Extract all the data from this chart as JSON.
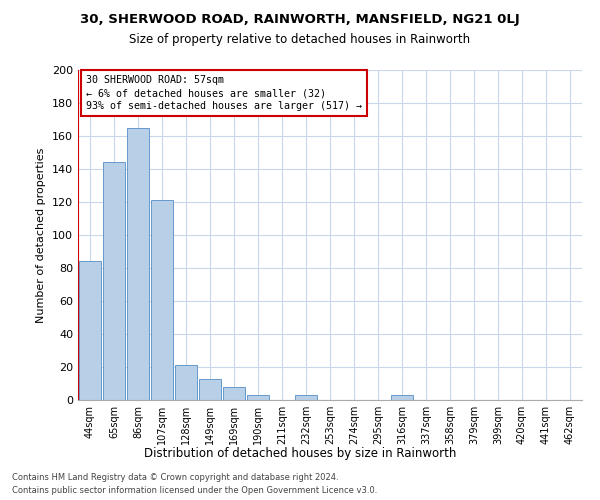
{
  "title1": "30, SHERWOOD ROAD, RAINWORTH, MANSFIELD, NG21 0LJ",
  "title2": "Size of property relative to detached houses in Rainworth",
  "xlabel": "Distribution of detached houses by size in Rainworth",
  "ylabel": "Number of detached properties",
  "footer1": "Contains HM Land Registry data © Crown copyright and database right 2024.",
  "footer2": "Contains public sector information licensed under the Open Government Licence v3.0.",
  "bar_labels": [
    "44sqm",
    "65sqm",
    "86sqm",
    "107sqm",
    "128sqm",
    "149sqm",
    "169sqm",
    "190sqm",
    "211sqm",
    "232sqm",
    "253sqm",
    "274sqm",
    "295sqm",
    "316sqm",
    "337sqm",
    "358sqm",
    "379sqm",
    "399sqm",
    "420sqm",
    "441sqm",
    "462sqm"
  ],
  "bar_values": [
    84,
    144,
    165,
    121,
    21,
    13,
    8,
    3,
    0,
    3,
    0,
    0,
    0,
    3,
    0,
    0,
    0,
    0,
    0,
    0,
    0
  ],
  "bar_color": "#b8cfe8",
  "bar_edge_color": "#6699cc",
  "highlight_color": "#cc0000",
  "property_label": "30 SHERWOOD ROAD: 57sqm",
  "annotation_line1": "← 6% of detached houses are smaller (32)",
  "annotation_line2": "93% of semi-detached houses are larger (517) →",
  "ylim": [
    0,
    200
  ],
  "yticks": [
    0,
    20,
    40,
    60,
    80,
    100,
    120,
    140,
    160,
    180,
    200
  ],
  "bg_color": "#ffffff",
  "grid_color": "#c8d8ea",
  "vline_x": -0.5
}
